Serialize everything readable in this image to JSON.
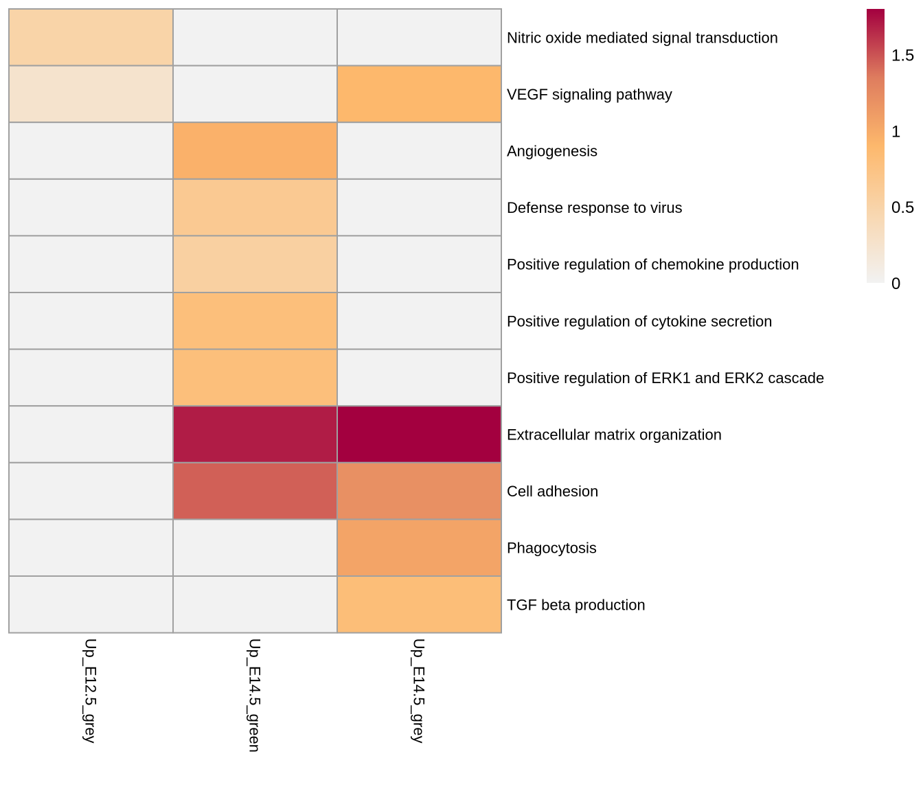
{
  "chart_data": {
    "type": "heatmap",
    "columns": [
      "Up_E12.5_grey",
      "Up_E14.5_green",
      "Up_E14.5_grey"
    ],
    "rows": [
      "Nitric oxide mediated signal transduction",
      "VEGF signaling pathway",
      "Angiogenesis",
      "Defense response to virus",
      "Positive regulation of chemokine production",
      "Positive regulation of cytokine secretion",
      "Positive regulation of ERK1 and ERK2 cascade",
      "Extracellular matrix organization",
      "Cell adhesion",
      "Phagocytosis",
      "TGF beta production"
    ],
    "values": [
      [
        0.5,
        0,
        0
      ],
      [
        0.25,
        0,
        0.9
      ],
      [
        0,
        0.95,
        0
      ],
      [
        0,
        0.65,
        0
      ],
      [
        0,
        0.55,
        0
      ],
      [
        0,
        0.8,
        0
      ],
      [
        0,
        0.8,
        0
      ],
      [
        0,
        1.7,
        1.8
      ],
      [
        0,
        1.45,
        1.2
      ],
      [
        0,
        0,
        1.05
      ],
      [
        0,
        0,
        0.82
      ]
    ],
    "colorbar": {
      "min": 0,
      "max": 1.8,
      "ticks": [
        {
          "value": 0,
          "label": "0"
        },
        {
          "value": 0.5,
          "label": "0.5"
        },
        {
          "value": 1,
          "label": "1"
        },
        {
          "value": 1.5,
          "label": "1.5"
        }
      ],
      "colors": [
        "#f2f2f2",
        "#f8d7b0",
        "#fdb86c",
        "#de7c5e",
        "#a3003f"
      ]
    },
    "cell_border_color": "#a0a0a0",
    "legend_position": "top-right"
  }
}
